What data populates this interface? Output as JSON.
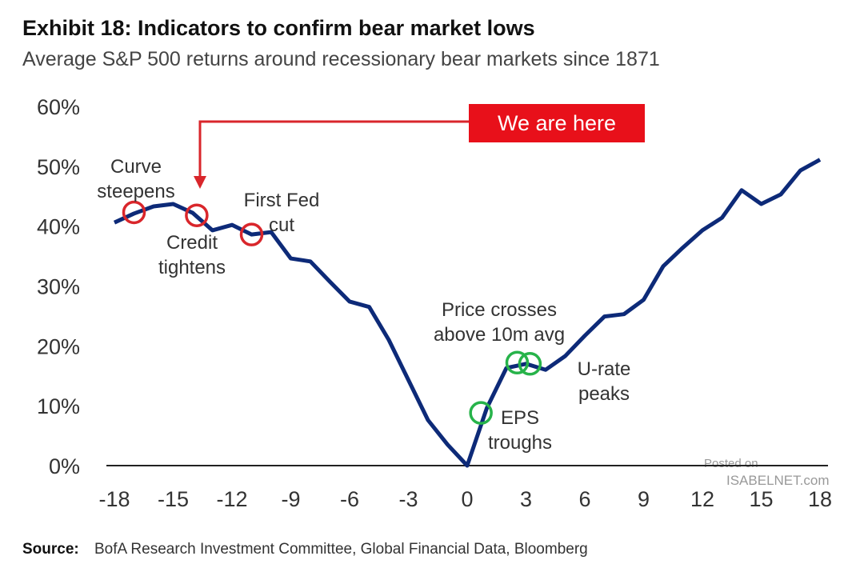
{
  "chart_data": {
    "type": "line",
    "title": "Exhibit 18: Indicators to confirm bear market lows",
    "subtitle": "Average S&P 500 returns around recessionary bear markets since 1871",
    "x": [
      -18,
      -17,
      -16,
      -15,
      -14,
      -13,
      -12,
      -11,
      -10,
      -9,
      -8,
      -7,
      -6,
      -5,
      -4,
      -3,
      -2,
      -1,
      0,
      1,
      2,
      3,
      4,
      5,
      6,
      7,
      8,
      9,
      10,
      11,
      12,
      13,
      14,
      15,
      16,
      17,
      18
    ],
    "series": [
      {
        "color": "#0d2a78",
        "values": [
          40.6,
          42.1,
          43.3,
          43.7,
          42.2,
          39.3,
          40.2,
          38.6,
          39.0,
          34.6,
          34.1,
          30.7,
          27.4,
          26.5,
          21.0,
          14.3,
          7.6,
          3.5,
          0,
          9.6,
          16.3,
          17.0,
          16.0,
          18.3,
          21.7,
          24.9,
          25.3,
          27.7,
          33.3,
          36.4,
          39.3,
          41.4,
          46.0,
          43.7,
          45.3,
          49.3,
          51.1
        ]
      }
    ],
    "xlim": [
      -18,
      18
    ],
    "xticks": [
      -18,
      -15,
      -12,
      -9,
      -6,
      -3,
      0,
      3,
      6,
      9,
      12,
      15,
      18
    ],
    "ylim": [
      0,
      60
    ],
    "yticks": [
      {
        "value": 0,
        "label": "0%"
      },
      {
        "value": 10,
        "label": "10%"
      },
      {
        "value": 20,
        "label": "20%"
      },
      {
        "value": 30,
        "label": "30%"
      },
      {
        "value": 40,
        "label": "40%"
      },
      {
        "value": 50,
        "label": "50%"
      },
      {
        "value": 60,
        "label": "60%"
      }
    ],
    "grid": false,
    "markers": [
      {
        "label": [
          "Curve",
          "steepens"
        ],
        "x": -17,
        "y": 42.3,
        "color": "#d9262b"
      },
      {
        "label": [
          "Credit",
          "tightens"
        ],
        "x": -13.8,
        "y": 41.8,
        "color": "#d9262b"
      },
      {
        "label": [
          "First Fed",
          "cut"
        ],
        "x": -11,
        "y": 38.6,
        "color": "#d9262b"
      },
      {
        "label": [
          "Price crosses",
          "above 10m avg"
        ],
        "x": 2.55,
        "y": 17.2,
        "color": "#27b34a"
      },
      {
        "label": [
          "EPS",
          "troughs"
        ],
        "x": 0.7,
        "y": 8.8,
        "color": "#27b34a"
      },
      {
        "label": [
          "U-rate",
          "peaks"
        ],
        "x": 3.2,
        "y": 17.0,
        "color": "#27b34a"
      }
    ],
    "callout": "We are here",
    "source_label": "Source:",
    "source": "BofA Research Investment Committee, Global Financial Data, Bloomberg",
    "watermark": [
      "Posted on",
      "ISABELNET.com"
    ]
  }
}
